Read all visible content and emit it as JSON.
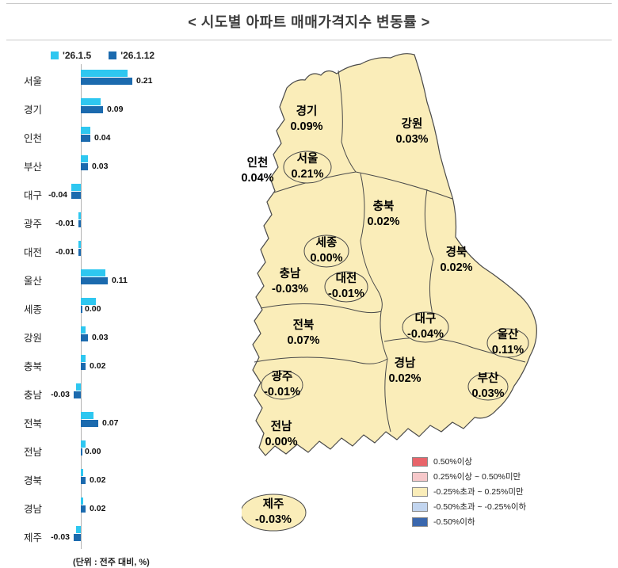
{
  "header": {
    "title": "< 시도별 아파트 매매가격지수 변동률 >"
  },
  "footnote": "(단위 : 전주 대비, %)",
  "chart_data": {
    "type": "bar",
    "orientation": "horizontal",
    "unit": "전주 대비, %",
    "xlim": [
      -0.06,
      0.25
    ],
    "categories": [
      "서울",
      "경기",
      "인천",
      "부산",
      "대구",
      "광주",
      "대전",
      "울산",
      "세종",
      "강원",
      "충북",
      "충남",
      "전북",
      "전남",
      "경북",
      "경남",
      "제주"
    ],
    "series": [
      {
        "name": "'26.1.5",
        "color": "#2ec7f0",
        "values": [
          0.19,
          0.08,
          0.04,
          0.03,
          -0.04,
          -0.01,
          -0.01,
          0.1,
          0.06,
          0.02,
          0.02,
          -0.02,
          0.05,
          0.02,
          0.01,
          0.01,
          -0.02
        ]
      },
      {
        "name": "'26.1.12",
        "color": "#1b6aae",
        "values": [
          0.21,
          0.09,
          0.04,
          0.03,
          -0.04,
          -0.01,
          -0.01,
          0.11,
          0.0,
          0.03,
          0.02,
          -0.03,
          0.07,
          0.0,
          0.02,
          0.02,
          -0.03
        ]
      }
    ],
    "value_labels": [
      "0.21",
      "0.09",
      "0.04",
      "0.03",
      "-0.04",
      "-0.01",
      "-0.01",
      "0.11",
      "0.00",
      "0.03",
      "0.02",
      "-0.03",
      "0.07",
      "0.00",
      "0.02",
      "0.02",
      "-0.03"
    ]
  },
  "map": {
    "fill_color": "#faedb9",
    "border_color": "#4a4a4a",
    "regions": [
      {
        "name": "경기",
        "value": "0.09%"
      },
      {
        "name": "강원",
        "value": "0.03%"
      },
      {
        "name": "인천",
        "value": "0.04%"
      },
      {
        "name": "서울",
        "value": "0.21%"
      },
      {
        "name": "충북",
        "value": "0.02%"
      },
      {
        "name": "세종",
        "value": "0.00%"
      },
      {
        "name": "경북",
        "value": "0.02%"
      },
      {
        "name": "충남",
        "value": "-0.03%"
      },
      {
        "name": "대전",
        "value": "-0.01%"
      },
      {
        "name": "전북",
        "value": "0.07%"
      },
      {
        "name": "대구",
        "value": "-0.04%"
      },
      {
        "name": "울산",
        "value": "0.11%"
      },
      {
        "name": "광주",
        "value": "-0.01%"
      },
      {
        "name": "경남",
        "value": "0.02%"
      },
      {
        "name": "부산",
        "value": "0.03%"
      },
      {
        "name": "전남",
        "value": "0.00%"
      },
      {
        "name": "제주",
        "value": "-0.03%"
      }
    ],
    "legend": [
      {
        "color": "#e8646a",
        "label": "0.50%이상"
      },
      {
        "color": "#f6c8ca",
        "label": "0.25%이상 ~ 0.50%미만"
      },
      {
        "color": "#faedb9",
        "label": "-0.25%초과 ~ 0.25%미만"
      },
      {
        "color": "#c2d5ef",
        "label": "-0.50%초과 ~ -0.25%이하"
      },
      {
        "color": "#3a67ad",
        "label": "-0.50%이하"
      }
    ]
  }
}
